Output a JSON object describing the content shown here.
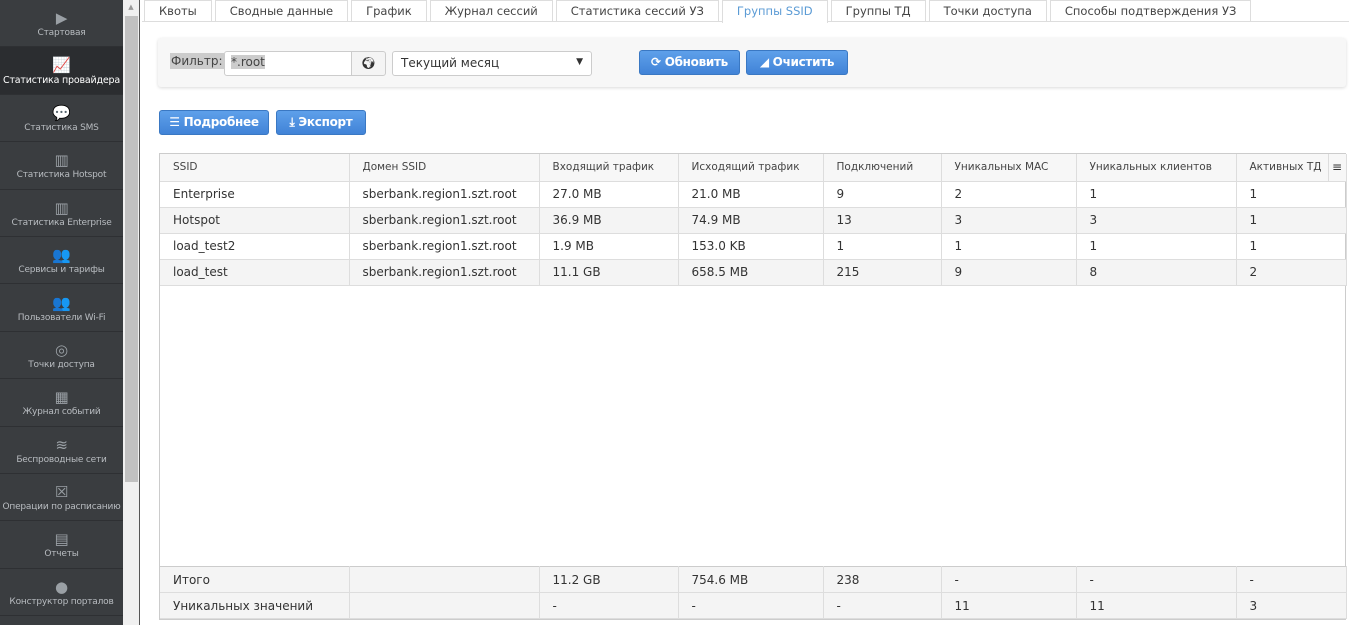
{
  "sidebar": {
    "items": [
      {
        "label": "Стартовая",
        "icon": "▶"
      },
      {
        "label": "Статистика провайдера",
        "icon": "📈"
      },
      {
        "label": "Статистика SMS",
        "icon": "💬"
      },
      {
        "label": "Статистика Hotspot",
        "icon": "▥"
      },
      {
        "label": "Статистика Enterprise",
        "icon": "▥"
      },
      {
        "label": "Сервисы и тарифы",
        "icon": "👥"
      },
      {
        "label": "Пользователи Wi-Fi",
        "icon": "👥"
      },
      {
        "label": "Точки доступа",
        "icon": "◎"
      },
      {
        "label": "Журнал событий",
        "icon": "▦"
      },
      {
        "label": "Беспроводные сети",
        "icon": "≋"
      },
      {
        "label": "Операции по расписанию",
        "icon": "☒"
      },
      {
        "label": "Отчеты",
        "icon": "▤"
      },
      {
        "label": "Конструктор порталов",
        "icon": "●"
      }
    ],
    "active": 1
  },
  "tabs": [
    "Квоты",
    "Сводные данные",
    "График",
    "Журнал сессий",
    "Статистика сессий УЗ",
    "Группы SSID",
    "Группы ТД",
    "Точки доступа",
    "Способы подтверждения УЗ"
  ],
  "active_tab": 5,
  "filter": {
    "label": "Фильтр:",
    "value": "*.root",
    "period": "Текущий месяц",
    "refresh": "Обновить",
    "clear": "Очистить"
  },
  "actions": {
    "details": "Подробнее",
    "export": "Экспорт"
  },
  "table": {
    "columns": [
      "SSID",
      "Домен SSID",
      "Входящий трафик",
      "Исходящий трафик",
      "Подключений",
      "Уникальных MAC",
      "Уникальных клиентов",
      "Активных ТД"
    ],
    "rows": [
      [
        "Enterprise",
        "sberbank.region1.szt.root",
        "27.0 MB",
        "21.0 MB",
        "9",
        "2",
        "1",
        "1"
      ],
      [
        "Hotspot",
        "sberbank.region1.szt.root",
        "36.9 MB",
        "74.9 MB",
        "13",
        "3",
        "3",
        "1"
      ],
      [
        "load_test2",
        "sberbank.region1.szt.root",
        "1.9 MB",
        "153.0 KB",
        "1",
        "1",
        "1",
        "1"
      ],
      [
        "load_test",
        "sberbank.region1.szt.root",
        "11.1 GB",
        "658.5 MB",
        "215",
        "9",
        "8",
        "2"
      ]
    ],
    "footer": [
      [
        "Итого",
        "",
        "11.2 GB",
        "754.6 MB",
        "238",
        "-",
        "-",
        "-"
      ],
      [
        "Уникальных значений",
        "",
        "-",
        "-",
        "-",
        "11",
        "11",
        "3"
      ]
    ]
  }
}
